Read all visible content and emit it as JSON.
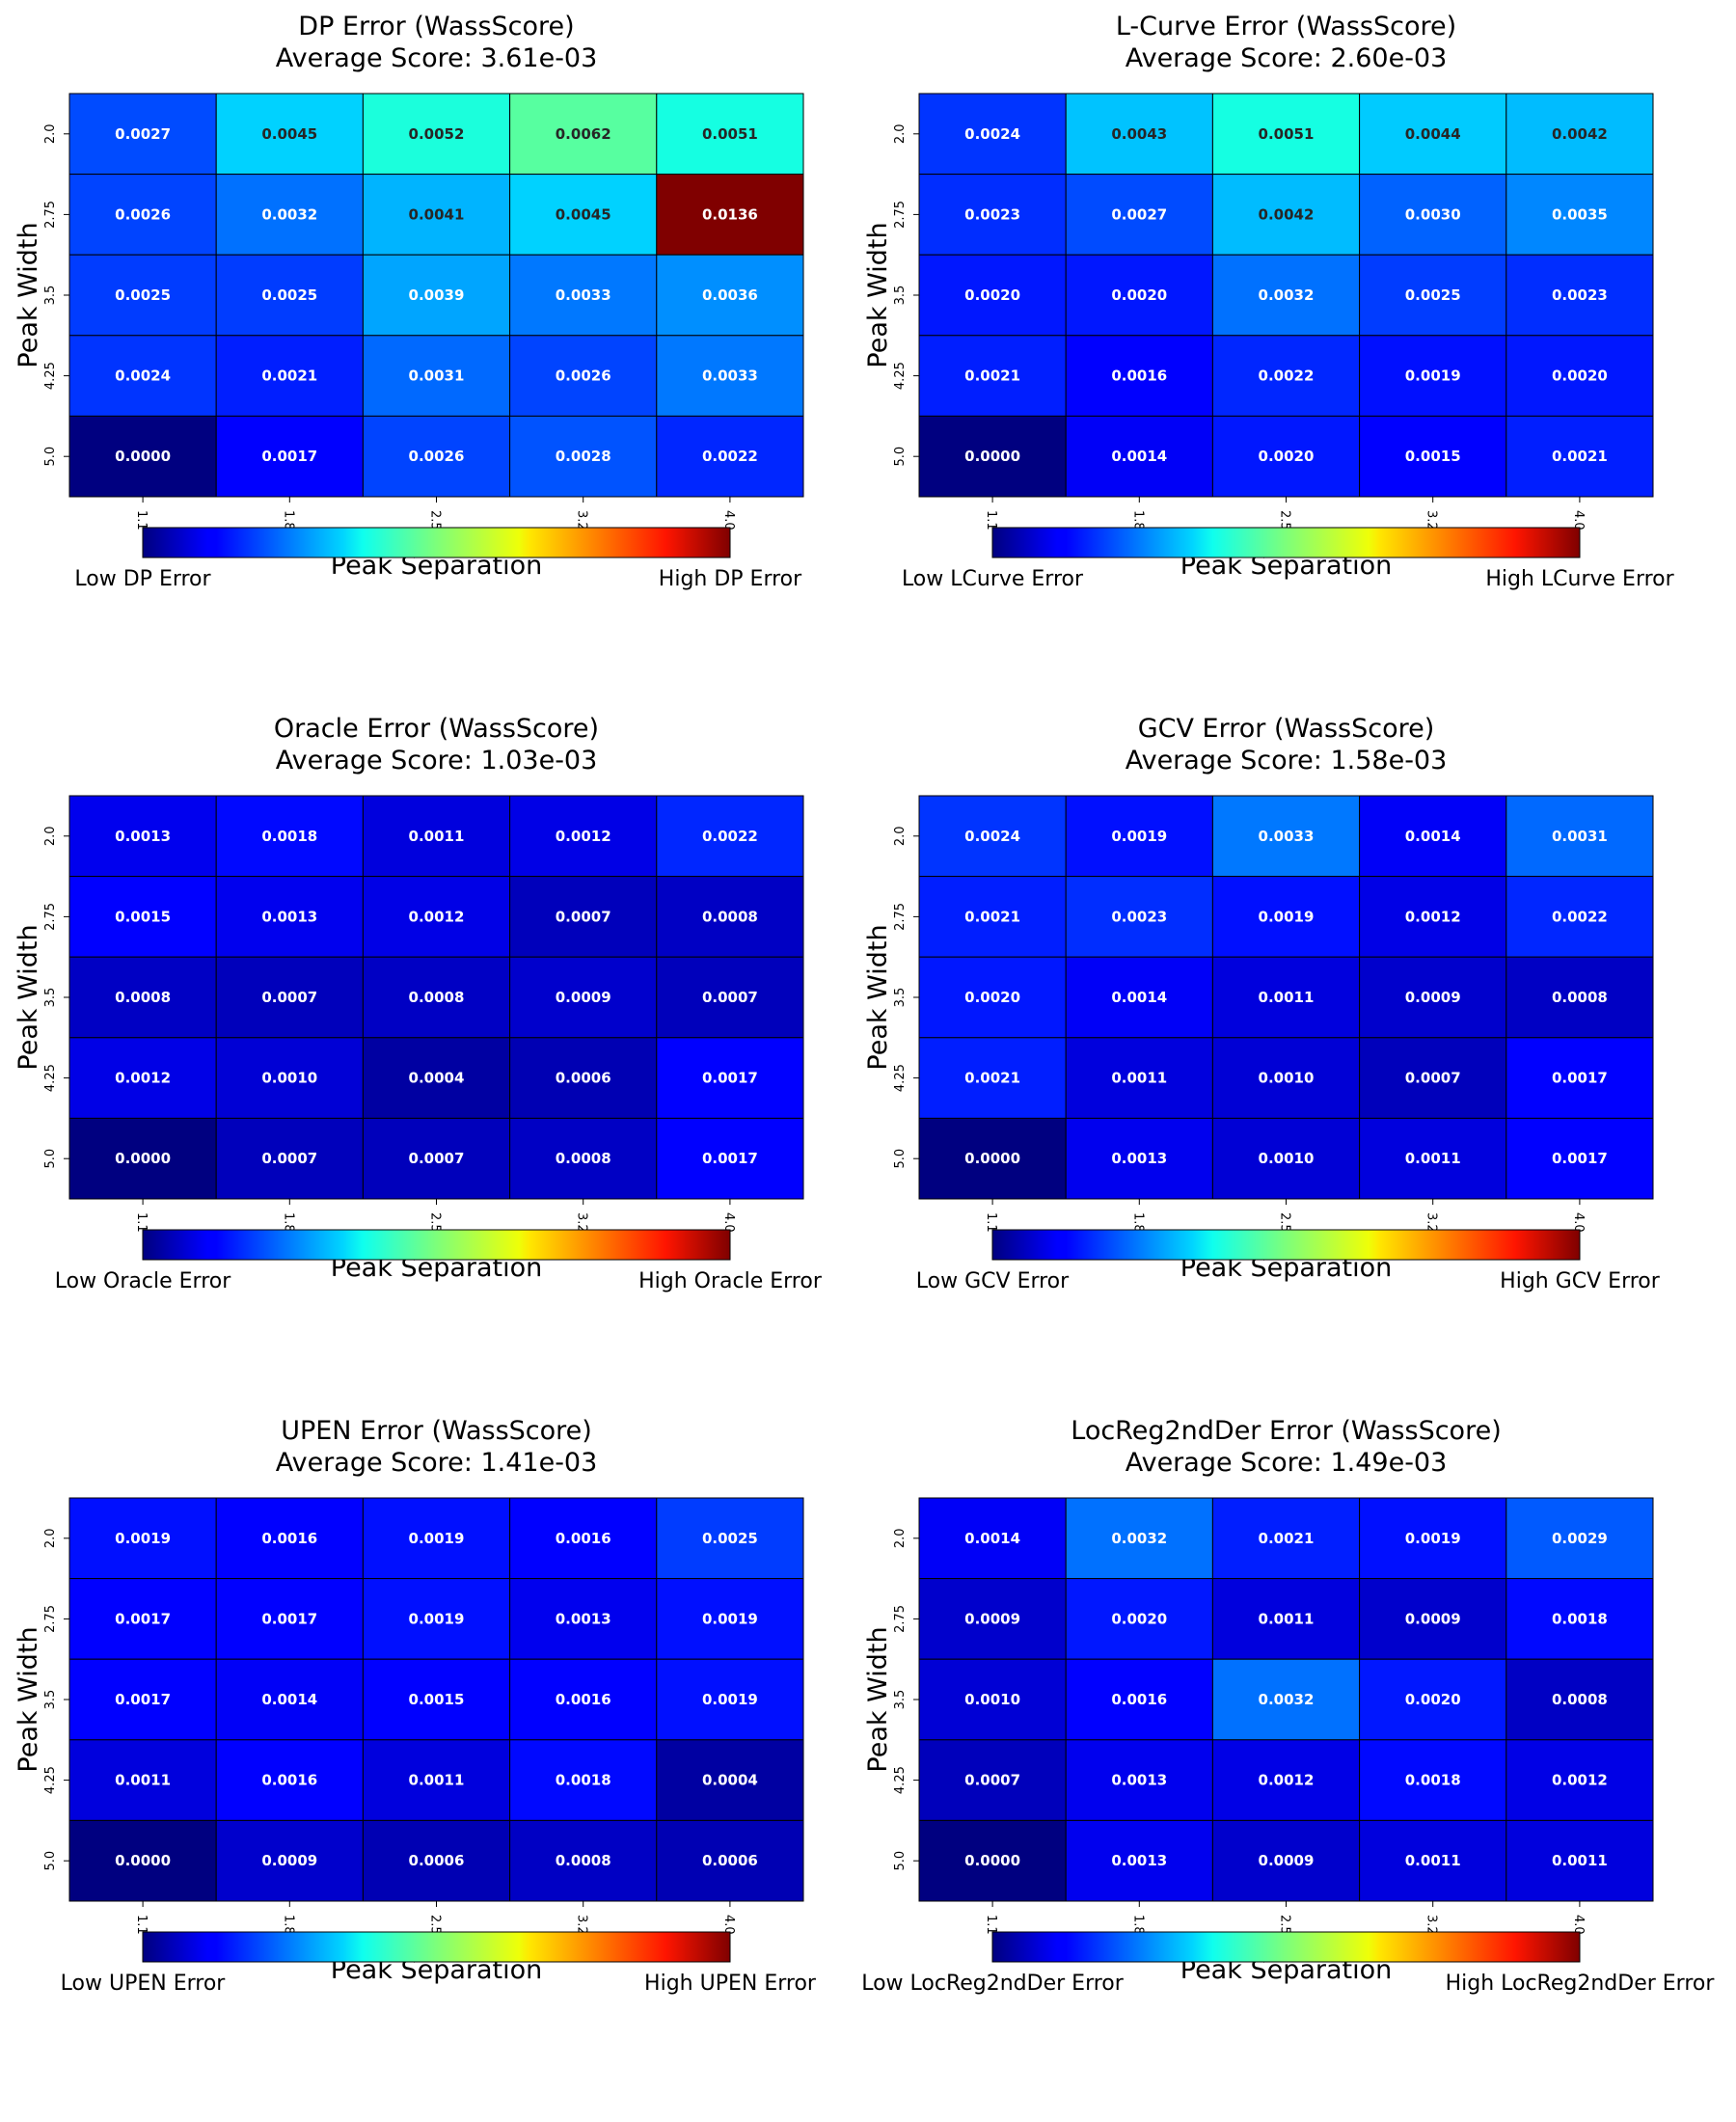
{
  "chart_data": [
    {
      "type": "heatmap",
      "title": "DP Error (WassScore)",
      "subtitle": "Average Score: 3.61e-03",
      "xlabel": "Peak Separation",
      "ylabel": "Peak Width",
      "x_ticks": [
        "1.1",
        "1.825",
        "2.55",
        "3.275",
        "4.0"
      ],
      "y_ticks": [
        "2.0",
        "2.75",
        "3.5",
        "4.25",
        "5.0"
      ],
      "values": [
        [
          "0.0027",
          "0.0045",
          "0.0052",
          "0.0062",
          "0.0051"
        ],
        [
          "0.0026",
          "0.0032",
          "0.0041",
          "0.0045",
          "0.0136"
        ],
        [
          "0.0025",
          "0.0025",
          "0.0039",
          "0.0033",
          "0.0036"
        ],
        [
          "0.0024",
          "0.0021",
          "0.0031",
          "0.0026",
          "0.0033"
        ],
        [
          "0.0000",
          "0.0017",
          "0.0026",
          "0.0028",
          "0.0022"
        ]
      ],
      "colorbar": {
        "low_label": "Low DP Error",
        "high_label": "High DP Error",
        "colormap": "jet"
      }
    },
    {
      "type": "heatmap",
      "title": "L-Curve Error (WassScore)",
      "subtitle": "Average Score: 2.60e-03",
      "xlabel": "Peak Separation",
      "ylabel": "Peak Width",
      "x_ticks": [
        "1.1",
        "1.825",
        "2.55",
        "3.275",
        "4.0"
      ],
      "y_ticks": [
        "2.0",
        "2.75",
        "3.5",
        "4.25",
        "5.0"
      ],
      "values": [
        [
          "0.0024",
          "0.0043",
          "0.0051",
          "0.0044",
          "0.0042"
        ],
        [
          "0.0023",
          "0.0027",
          "0.0042",
          "0.0030",
          "0.0035"
        ],
        [
          "0.0020",
          "0.0020",
          "0.0032",
          "0.0025",
          "0.0023"
        ],
        [
          "0.0021",
          "0.0016",
          "0.0022",
          "0.0019",
          "0.0020"
        ],
        [
          "0.0000",
          "0.0014",
          "0.0020",
          "0.0015",
          "0.0021"
        ]
      ],
      "colorbar": {
        "low_label": "Low LCurve Error",
        "high_label": "High LCurve Error",
        "colormap": "jet"
      }
    },
    {
      "type": "heatmap",
      "title": "Oracle Error (WassScore)",
      "subtitle": "Average Score: 1.03e-03",
      "xlabel": "Peak Separation",
      "ylabel": "Peak Width",
      "x_ticks": [
        "1.1",
        "1.825",
        "2.55",
        "3.275",
        "4.0"
      ],
      "y_ticks": [
        "2.0",
        "2.75",
        "3.5",
        "4.25",
        "5.0"
      ],
      "values": [
        [
          "0.0013",
          "0.0018",
          "0.0011",
          "0.0012",
          "0.0022"
        ],
        [
          "0.0015",
          "0.0013",
          "0.0012",
          "0.0007",
          "0.0008"
        ],
        [
          "0.0008",
          "0.0007",
          "0.0008",
          "0.0009",
          "0.0007"
        ],
        [
          "0.0012",
          "0.0010",
          "0.0004",
          "0.0006",
          "0.0017"
        ],
        [
          "0.0000",
          "0.0007",
          "0.0007",
          "0.0008",
          "0.0017"
        ]
      ],
      "colorbar": {
        "low_label": "Low Oracle Error",
        "high_label": "High Oracle Error",
        "colormap": "jet"
      }
    },
    {
      "type": "heatmap",
      "title": "GCV Error (WassScore)",
      "subtitle": "Average Score: 1.58e-03",
      "xlabel": "Peak Separation",
      "ylabel": "Peak Width",
      "x_ticks": [
        "1.1",
        "1.825",
        "2.55",
        "3.275",
        "4.0"
      ],
      "y_ticks": [
        "2.0",
        "2.75",
        "3.5",
        "4.25",
        "5.0"
      ],
      "values": [
        [
          "0.0024",
          "0.0019",
          "0.0033",
          "0.0014",
          "0.0031"
        ],
        [
          "0.0021",
          "0.0023",
          "0.0019",
          "0.0012",
          "0.0022"
        ],
        [
          "0.0020",
          "0.0014",
          "0.0011",
          "0.0009",
          "0.0008"
        ],
        [
          "0.0021",
          "0.0011",
          "0.0010",
          "0.0007",
          "0.0017"
        ],
        [
          "0.0000",
          "0.0013",
          "0.0010",
          "0.0011",
          "0.0017"
        ]
      ],
      "colorbar": {
        "low_label": "Low GCV Error",
        "high_label": "High GCV Error",
        "colormap": "jet"
      }
    },
    {
      "type": "heatmap",
      "title": "UPEN Error (WassScore)",
      "subtitle": "Average Score: 1.41e-03",
      "xlabel": "Peak Separation",
      "ylabel": "Peak Width",
      "x_ticks": [
        "1.1",
        "1.825",
        "2.55",
        "3.275",
        "4.0"
      ],
      "y_ticks": [
        "2.0",
        "2.75",
        "3.5",
        "4.25",
        "5.0"
      ],
      "values": [
        [
          "0.0019",
          "0.0016",
          "0.0019",
          "0.0016",
          "0.0025"
        ],
        [
          "0.0017",
          "0.0017",
          "0.0019",
          "0.0013",
          "0.0019"
        ],
        [
          "0.0017",
          "0.0014",
          "0.0015",
          "0.0016",
          "0.0019"
        ],
        [
          "0.0011",
          "0.0016",
          "0.0011",
          "0.0018",
          "0.0004"
        ],
        [
          "0.0000",
          "0.0009",
          "0.0006",
          "0.0008",
          "0.0006"
        ]
      ],
      "colorbar": {
        "low_label": "Low UPEN Error",
        "high_label": "High UPEN Error",
        "colormap": "jet"
      }
    },
    {
      "type": "heatmap",
      "title": "LocReg2ndDer Error (WassScore)",
      "subtitle": "Average Score: 1.49e-03",
      "xlabel": "Peak Separation",
      "ylabel": "Peak Width",
      "x_ticks": [
        "1.1",
        "1.825",
        "2.55",
        "3.275",
        "4.0"
      ],
      "y_ticks": [
        "2.0",
        "2.75",
        "3.5",
        "4.25",
        "5.0"
      ],
      "values": [
        [
          "0.0014",
          "0.0032",
          "0.0021",
          "0.0019",
          "0.0029"
        ],
        [
          "0.0009",
          "0.0020",
          "0.0011",
          "0.0009",
          "0.0018"
        ],
        [
          "0.0010",
          "0.0016",
          "0.0032",
          "0.0020",
          "0.0008"
        ],
        [
          "0.0007",
          "0.0013",
          "0.0012",
          "0.0018",
          "0.0012"
        ],
        [
          "0.0000",
          "0.0013",
          "0.0009",
          "0.0011",
          "0.0011"
        ]
      ],
      "colorbar": {
        "low_label": "Low LocReg2ndDer Error",
        "high_label": "High LocReg2ndDer Error",
        "colormap": "jet"
      }
    }
  ]
}
